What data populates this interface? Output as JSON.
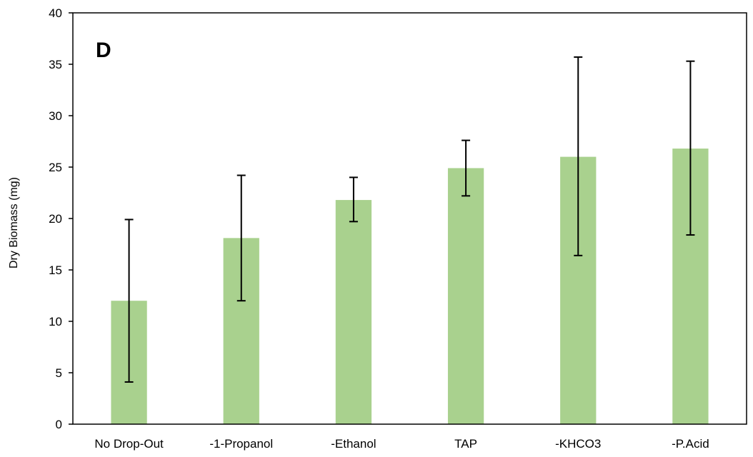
{
  "chart_data": {
    "type": "bar",
    "panel_label": "D",
    "categories": [
      "No Drop-Out",
      "-1-Propanol",
      "-Ethanol",
      "TAP",
      "-KHCO3",
      "-P.Acid"
    ],
    "values": [
      12.0,
      18.1,
      21.8,
      24.9,
      26.0,
      26.8
    ],
    "error_low": [
      4.1,
      12.0,
      19.7,
      22.2,
      16.4,
      18.4
    ],
    "error_high": [
      19.9,
      24.2,
      24.0,
      27.6,
      35.7,
      35.3
    ],
    "ylabel": "Dry Biomass (mg)",
    "xlabel": "",
    "ylim": [
      0,
      40
    ],
    "yticks": [
      0,
      5,
      10,
      15,
      20,
      25,
      30,
      35,
      40
    ],
    "grid": false,
    "bar_color": "#a9d18e",
    "error_color": "#000000"
  }
}
